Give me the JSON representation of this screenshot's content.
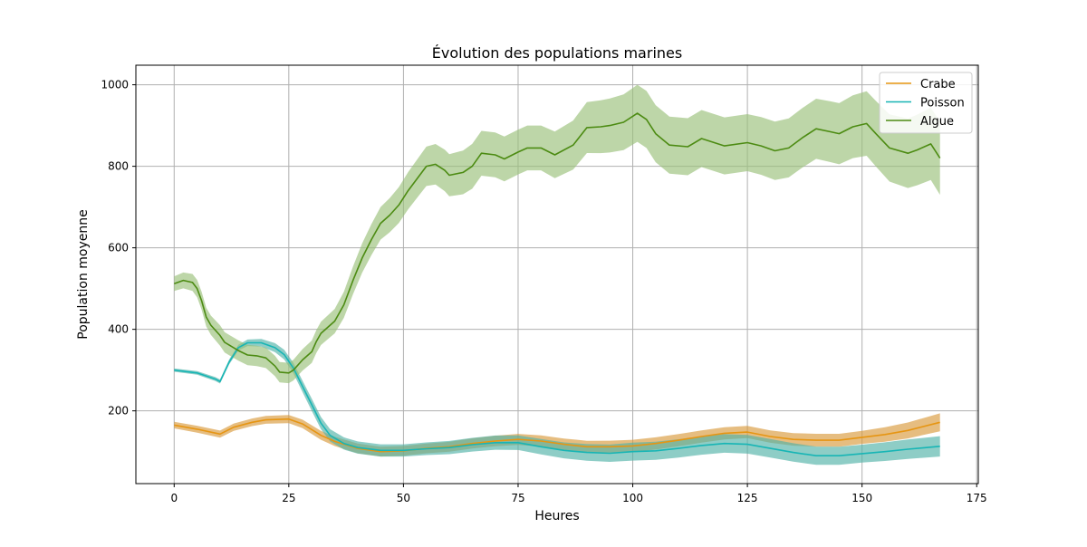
{
  "chart_data": {
    "type": "line",
    "title": "Évolution des populations marines",
    "xlabel": "Heures",
    "ylabel": "Population moyenne",
    "xlim": [
      -8.35,
      175.35
    ],
    "ylim": [
      21.5,
      1048
    ],
    "xticks": [
      0,
      25,
      50,
      75,
      100,
      125,
      150,
      175
    ],
    "yticks": [
      200,
      400,
      600,
      800,
      1000
    ],
    "grid": true,
    "legend_position": "top-right",
    "series": [
      {
        "name": "Crabe",
        "color": "#e69512",
        "band_color": "#d99a3c",
        "points": [
          [
            0,
            165
          ],
          [
            5,
            155
          ],
          [
            10,
            143
          ],
          [
            13,
            160
          ],
          [
            17,
            172
          ],
          [
            20,
            178
          ],
          [
            25,
            180
          ],
          [
            28,
            168
          ],
          [
            32,
            140
          ],
          [
            35,
            125
          ],
          [
            40,
            108
          ],
          [
            45,
            100
          ],
          [
            50,
            102
          ],
          [
            55,
            108
          ],
          [
            60,
            112
          ],
          [
            65,
            120
          ],
          [
            70,
            126
          ],
          [
            75,
            130
          ],
          [
            80,
            126
          ],
          [
            85,
            118
          ],
          [
            90,
            112
          ],
          [
            95,
            112
          ],
          [
            100,
            114
          ],
          [
            105,
            120
          ],
          [
            110,
            128
          ],
          [
            115,
            137
          ],
          [
            120,
            145
          ],
          [
            125,
            148
          ],
          [
            130,
            137
          ],
          [
            135,
            130
          ],
          [
            140,
            128
          ],
          [
            145,
            128
          ],
          [
            150,
            135
          ],
          [
            155,
            142
          ],
          [
            160,
            152
          ],
          [
            167,
            172
          ]
        ],
        "band": [
          [
            0,
            8
          ],
          [
            25,
            10
          ],
          [
            40,
            12
          ],
          [
            60,
            12
          ],
          [
            80,
            14
          ],
          [
            100,
            15
          ],
          [
            125,
            15
          ],
          [
            150,
            16
          ],
          [
            167,
            22
          ]
        ]
      },
      {
        "name": "Poisson",
        "color": "#17b5b5",
        "band_color": "#52b2a7",
        "points": [
          [
            0,
            300
          ],
          [
            5,
            293
          ],
          [
            9,
            278
          ],
          [
            10,
            272
          ],
          [
            12,
            320
          ],
          [
            14,
            355
          ],
          [
            16,
            367
          ],
          [
            19,
            367
          ],
          [
            22,
            355
          ],
          [
            24,
            338
          ],
          [
            26,
            305
          ],
          [
            28,
            260
          ],
          [
            30,
            215
          ],
          [
            32,
            170
          ],
          [
            34,
            140
          ],
          [
            37,
            120
          ],
          [
            40,
            110
          ],
          [
            45,
            103
          ],
          [
            50,
            103
          ],
          [
            55,
            107
          ],
          [
            60,
            110
          ],
          [
            65,
            117
          ],
          [
            70,
            122
          ],
          [
            75,
            122
          ],
          [
            80,
            112
          ],
          [
            85,
            103
          ],
          [
            90,
            98
          ],
          [
            95,
            96
          ],
          [
            100,
            100
          ],
          [
            105,
            102
          ],
          [
            110,
            108
          ],
          [
            115,
            115
          ],
          [
            120,
            120
          ],
          [
            125,
            118
          ],
          [
            130,
            108
          ],
          [
            135,
            98
          ],
          [
            140,
            90
          ],
          [
            145,
            90
          ],
          [
            150,
            95
          ],
          [
            155,
            100
          ],
          [
            160,
            106
          ],
          [
            167,
            113
          ]
        ],
        "band": [
          [
            0,
            4
          ],
          [
            10,
            5
          ],
          [
            20,
            10
          ],
          [
            30,
            15
          ],
          [
            50,
            15
          ],
          [
            75,
            18
          ],
          [
            100,
            22
          ],
          [
            125,
            23
          ],
          [
            150,
            22
          ],
          [
            167,
            25
          ]
        ]
      },
      {
        "name": "Algue",
        "color": "#4c8b12",
        "band_color": "#99c07a",
        "points": [
          [
            0,
            512
          ],
          [
            2,
            520
          ],
          [
            4,
            515
          ],
          [
            5,
            500
          ],
          [
            6,
            470
          ],
          [
            7,
            430
          ],
          [
            8,
            410
          ],
          [
            10,
            385
          ],
          [
            11,
            368
          ],
          [
            14,
            348
          ],
          [
            16,
            337
          ],
          [
            18,
            335
          ],
          [
            20,
            330
          ],
          [
            22,
            310
          ],
          [
            23,
            295
          ],
          [
            25,
            293
          ],
          [
            26,
            300
          ],
          [
            28,
            325
          ],
          [
            30,
            345
          ],
          [
            31,
            370
          ],
          [
            32,
            390
          ],
          [
            34,
            410
          ],
          [
            35,
            420
          ],
          [
            37,
            460
          ],
          [
            39,
            520
          ],
          [
            41,
            575
          ],
          [
            43,
            620
          ],
          [
            45,
            660
          ],
          [
            47,
            680
          ],
          [
            49,
            705
          ],
          [
            51,
            740
          ],
          [
            53,
            770
          ],
          [
            55,
            800
          ],
          [
            57,
            805
          ],
          [
            59,
            790
          ],
          [
            60,
            778
          ],
          [
            63,
            785
          ],
          [
            65,
            800
          ],
          [
            67,
            832
          ],
          [
            70,
            828
          ],
          [
            72,
            818
          ],
          [
            75,
            835
          ],
          [
            77,
            845
          ],
          [
            80,
            845
          ],
          [
            83,
            828
          ],
          [
            87,
            852
          ],
          [
            90,
            895
          ],
          [
            93,
            897
          ],
          [
            95,
            900
          ],
          [
            98,
            908
          ],
          [
            101,
            930
          ],
          [
            103,
            915
          ],
          [
            105,
            880
          ],
          [
            108,
            852
          ],
          [
            112,
            848
          ],
          [
            115,
            868
          ],
          [
            120,
            850
          ],
          [
            125,
            858
          ],
          [
            128,
            850
          ],
          [
            131,
            838
          ],
          [
            134,
            845
          ],
          [
            137,
            870
          ],
          [
            140,
            892
          ],
          [
            143,
            885
          ],
          [
            145,
            880
          ],
          [
            148,
            897
          ],
          [
            151,
            905
          ],
          [
            153,
            880
          ],
          [
            156,
            845
          ],
          [
            160,
            832
          ],
          [
            162,
            840
          ],
          [
            165,
            855
          ],
          [
            167,
            820
          ]
        ],
        "band": [
          [
            0,
            18
          ],
          [
            10,
            25
          ],
          [
            25,
            25
          ],
          [
            35,
            30
          ],
          [
            50,
            45
          ],
          [
            65,
            55
          ],
          [
            80,
            55
          ],
          [
            100,
            70
          ],
          [
            125,
            70
          ],
          [
            145,
            75
          ],
          [
            167,
            90
          ]
        ]
      }
    ]
  }
}
